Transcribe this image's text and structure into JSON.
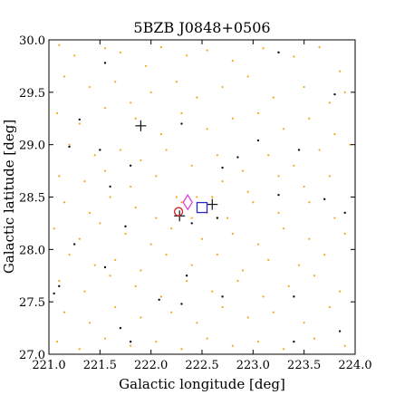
{
  "chart_data": {
    "type": "scatter",
    "title": "5BZB J0848+0506",
    "xlabel": "Galactic longitude [deg]",
    "ylabel": "Galactic latitude [deg]",
    "xlim": [
      221.0,
      224.0
    ],
    "ylim": [
      27.0,
      30.0
    ],
    "xticks": [
      "221.0",
      "221.5",
      "222.0",
      "222.5",
      "223.0",
      "223.5",
      "224.0"
    ],
    "yticks": [
      "27.0",
      "27.5",
      "28.0",
      "28.5",
      "29.0",
      "29.5",
      "30.0"
    ],
    "grid": false,
    "colors": {
      "orange": "#f5a623",
      "black": "#111111",
      "magenta": "#e040e0",
      "blue": "#2a2acc",
      "red": "#cc2222"
    },
    "series": [
      {
        "marker": "orange-dot",
        "points": [
          [
            221.1,
            29.95
          ],
          [
            221.25,
            29.85
          ],
          [
            221.55,
            29.92
          ],
          [
            221.7,
            29.88
          ],
          [
            221.95,
            29.75
          ],
          [
            222.1,
            29.93
          ],
          [
            222.35,
            29.85
          ],
          [
            222.55,
            29.9
          ],
          [
            222.8,
            29.8
          ],
          [
            223.1,
            29.92
          ],
          [
            223.4,
            29.84
          ],
          [
            223.65,
            29.93
          ],
          [
            223.85,
            29.7
          ],
          [
            221.15,
            29.65
          ],
          [
            221.4,
            29.55
          ],
          [
            221.65,
            29.6
          ],
          [
            221.8,
            29.4
          ],
          [
            222.0,
            29.5
          ],
          [
            222.25,
            29.6
          ],
          [
            222.45,
            29.45
          ],
          [
            222.7,
            29.55
          ],
          [
            222.95,
            29.65
          ],
          [
            223.2,
            29.45
          ],
          [
            223.5,
            29.55
          ],
          [
            223.75,
            29.4
          ],
          [
            223.9,
            29.5
          ],
          [
            221.08,
            29.3
          ],
          [
            221.3,
            29.2
          ],
          [
            221.55,
            29.35
          ],
          [
            221.85,
            29.25
          ],
          [
            222.1,
            29.1
          ],
          [
            222.3,
            29.3
          ],
          [
            222.55,
            29.15
          ],
          [
            222.8,
            29.25
          ],
          [
            223.05,
            29.3
          ],
          [
            223.3,
            29.15
          ],
          [
            223.55,
            29.25
          ],
          [
            223.8,
            29.1
          ],
          [
            221.2,
            29.0
          ],
          [
            221.45,
            28.9
          ],
          [
            221.7,
            28.95
          ],
          [
            221.9,
            28.85
          ],
          [
            222.15,
            28.95
          ],
          [
            222.4,
            28.8
          ],
          [
            222.65,
            28.9
          ],
          [
            222.9,
            28.75
          ],
          [
            223.15,
            28.9
          ],
          [
            223.4,
            28.8
          ],
          [
            223.65,
            28.95
          ],
          [
            223.95,
            29.0
          ],
          [
            221.1,
            28.7
          ],
          [
            221.35,
            28.65
          ],
          [
            221.55,
            28.75
          ],
          [
            221.8,
            28.6
          ],
          [
            222.05,
            28.7
          ],
          [
            222.7,
            28.65
          ],
          [
            222.95,
            28.55
          ],
          [
            223.25,
            28.7
          ],
          [
            223.5,
            28.6
          ],
          [
            223.75,
            28.7
          ],
          [
            221.15,
            28.45
          ],
          [
            221.4,
            28.35
          ],
          [
            221.6,
            28.5
          ],
          [
            221.85,
            28.4
          ],
          [
            222.05,
            28.3
          ],
          [
            222.25,
            28.5
          ],
          [
            222.3,
            28.45
          ],
          [
            222.4,
            28.3
          ],
          [
            222.45,
            28.5
          ],
          [
            222.55,
            28.35
          ],
          [
            222.6,
            28.5
          ],
          [
            222.75,
            28.3
          ],
          [
            223.0,
            28.45
          ],
          [
            223.25,
            28.35
          ],
          [
            223.55,
            28.45
          ],
          [
            223.8,
            28.3
          ],
          [
            221.05,
            28.2
          ],
          [
            221.3,
            28.1
          ],
          [
            221.5,
            28.25
          ],
          [
            221.75,
            28.15
          ],
          [
            222.0,
            28.05
          ],
          [
            222.2,
            28.2
          ],
          [
            222.5,
            28.1
          ],
          [
            222.8,
            28.15
          ],
          [
            223.05,
            28.05
          ],
          [
            223.3,
            28.2
          ],
          [
            223.55,
            28.1
          ],
          [
            223.9,
            28.15
          ],
          [
            221.2,
            27.95
          ],
          [
            221.45,
            27.85
          ],
          [
            221.65,
            27.9
          ],
          [
            221.9,
            27.8
          ],
          [
            222.15,
            27.95
          ],
          [
            222.4,
            27.85
          ],
          [
            222.65,
            27.95
          ],
          [
            222.9,
            27.8
          ],
          [
            223.15,
            27.9
          ],
          [
            223.45,
            27.85
          ],
          [
            223.7,
            27.95
          ],
          [
            221.1,
            27.7
          ],
          [
            221.35,
            27.6
          ],
          [
            221.6,
            27.75
          ],
          [
            221.85,
            27.65
          ],
          [
            222.1,
            27.55
          ],
          [
            222.35,
            27.7
          ],
          [
            222.6,
            27.6
          ],
          [
            222.85,
            27.7
          ],
          [
            223.1,
            27.55
          ],
          [
            223.35,
            27.65
          ],
          [
            223.6,
            27.75
          ],
          [
            223.85,
            27.6
          ],
          [
            221.15,
            27.4
          ],
          [
            221.4,
            27.3
          ],
          [
            221.65,
            27.45
          ],
          [
            221.9,
            27.35
          ],
          [
            222.2,
            27.4
          ],
          [
            222.45,
            27.3
          ],
          [
            222.7,
            27.45
          ],
          [
            222.95,
            27.35
          ],
          [
            223.2,
            27.4
          ],
          [
            223.5,
            27.3
          ],
          [
            223.75,
            27.45
          ],
          [
            221.08,
            27.12
          ],
          [
            221.3,
            27.05
          ],
          [
            221.55,
            27.15
          ],
          [
            221.8,
            27.08
          ],
          [
            222.05,
            27.12
          ],
          [
            222.3,
            27.05
          ],
          [
            222.55,
            27.15
          ],
          [
            222.8,
            27.08
          ],
          [
            223.05,
            27.12
          ],
          [
            223.3,
            27.05
          ],
          [
            223.6,
            27.15
          ],
          [
            223.9,
            27.08
          ]
        ]
      },
      {
        "marker": "black-dot",
        "points": [
          [
            221.3,
            29.24
          ],
          [
            221.55,
            29.78
          ],
          [
            222.3,
            29.2
          ],
          [
            223.25,
            29.88
          ],
          [
            223.8,
            29.48
          ],
          [
            221.2,
            28.98
          ],
          [
            221.5,
            28.95
          ],
          [
            221.8,
            28.8
          ],
          [
            222.85,
            28.88
          ],
          [
            223.05,
            29.04
          ],
          [
            223.45,
            28.95
          ],
          [
            221.6,
            28.6
          ],
          [
            222.7,
            28.78
          ],
          [
            223.25,
            28.52
          ],
          [
            223.7,
            28.48
          ],
          [
            221.75,
            28.22
          ],
          [
            222.4,
            28.25
          ],
          [
            222.65,
            28.3
          ],
          [
            223.9,
            28.35
          ],
          [
            221.25,
            28.05
          ],
          [
            221.55,
            27.83
          ],
          [
            222.35,
            27.75
          ],
          [
            223.4,
            27.55
          ],
          [
            221.05,
            27.58
          ],
          [
            221.1,
            27.65
          ],
          [
            222.08,
            27.52
          ],
          [
            222.3,
            27.48
          ],
          [
            222.7,
            27.55
          ],
          [
            221.7,
            27.25
          ],
          [
            221.8,
            27.12
          ],
          [
            223.4,
            27.12
          ],
          [
            223.85,
            27.22
          ]
        ]
      },
      {
        "marker": "plus",
        "points": [
          [
            221.9,
            29.18
          ],
          [
            222.28,
            28.32
          ],
          [
            222.6,
            28.43
          ]
        ]
      },
      {
        "marker": "magenta-diamond",
        "points": [
          [
            222.36,
            28.45
          ]
        ]
      },
      {
        "marker": "blue-square",
        "points": [
          [
            222.5,
            28.4
          ]
        ]
      },
      {
        "marker": "red-circle",
        "points": [
          [
            222.27,
            28.36
          ]
        ]
      }
    ]
  }
}
